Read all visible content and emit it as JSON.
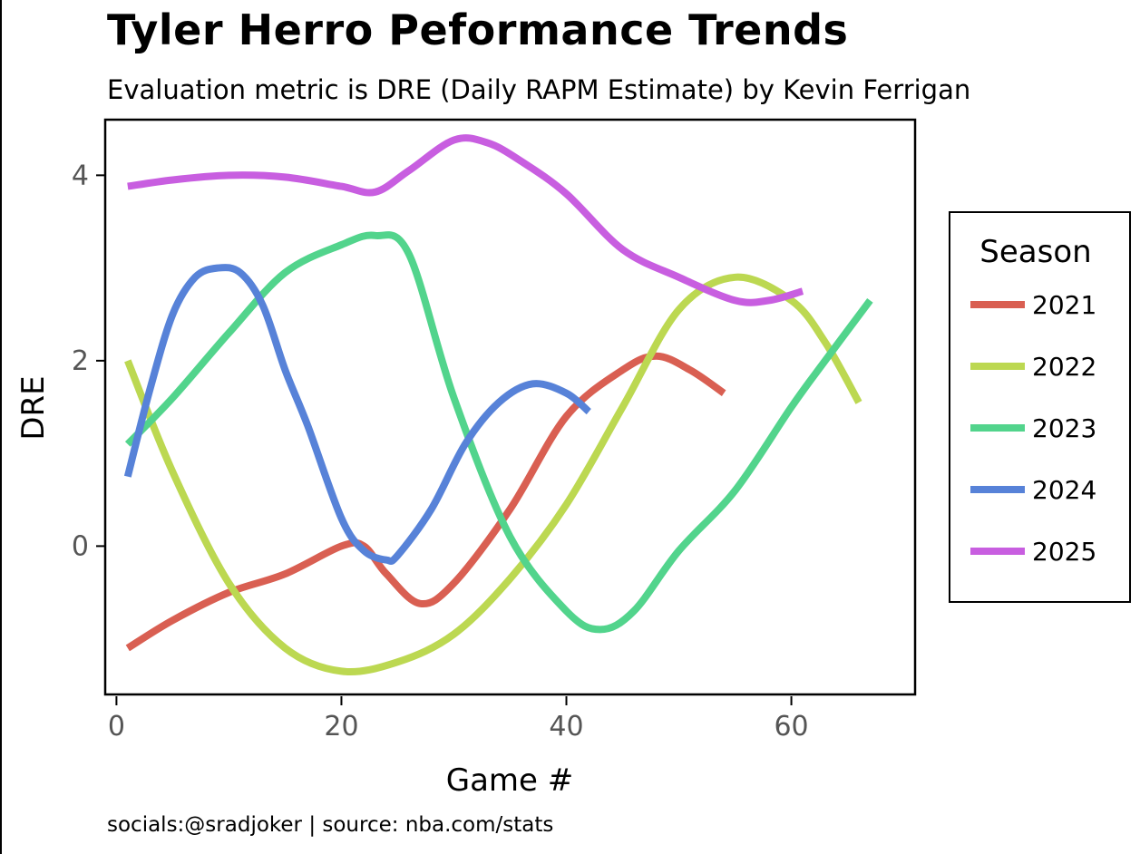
{
  "header": {
    "title": "Tyler Herro Peformance Trends",
    "subtitle": "Evaluation metric is DRE (Daily RAPM Estimate) by Kevin Ferrigan"
  },
  "footer": {
    "caption": "socials:@sradjoker | source: nba.com/stats"
  },
  "chart_data": {
    "type": "line",
    "title": "Tyler Herro Peformance Trends",
    "subtitle": "Evaluation metric is DRE (Daily RAPM Estimate) by Kevin Ferrigan",
    "xlabel": "Game #",
    "ylabel": "DRE",
    "xlim": [
      -1,
      71
    ],
    "ylim": [
      -1.6,
      4.6
    ],
    "xticks": [
      0,
      20,
      40,
      60
    ],
    "yticks": [
      0,
      2,
      4
    ],
    "grid": false,
    "legend": {
      "title": "Season",
      "placement": "right"
    },
    "series": [
      {
        "name": "2021",
        "color": "#d95f52",
        "x": [
          1,
          5,
          10,
          15,
          20,
          22,
          24,
          27,
          30,
          35,
          40,
          45,
          48,
          51,
          54
        ],
        "y": [
          -1.1,
          -0.8,
          -0.5,
          -0.3,
          0.0,
          0.0,
          -0.3,
          -0.62,
          -0.4,
          0.4,
          1.4,
          1.9,
          2.05,
          1.9,
          1.65
        ]
      },
      {
        "name": "2022",
        "color": "#bcd851",
        "x": [
          1,
          5,
          10,
          15,
          20,
          25,
          30,
          35,
          40,
          45,
          50,
          55,
          60,
          63,
          66
        ],
        "y": [
          2.0,
          0.8,
          -0.4,
          -1.1,
          -1.35,
          -1.25,
          -0.95,
          -0.35,
          0.45,
          1.5,
          2.55,
          2.9,
          2.65,
          2.2,
          1.55
        ]
      },
      {
        "name": "2023",
        "color": "#52d48c",
        "x": [
          1,
          5,
          10,
          15,
          20,
          23,
          26,
          30,
          35,
          40,
          43,
          46,
          50,
          55,
          60,
          63,
          67
        ],
        "y": [
          1.1,
          1.6,
          2.3,
          2.95,
          3.25,
          3.35,
          3.15,
          1.6,
          0.1,
          -0.7,
          -0.9,
          -0.7,
          -0.05,
          0.6,
          1.5,
          2.0,
          2.65
        ]
      },
      {
        "name": "2024",
        "color": "#5782d8",
        "x": [
          1,
          3,
          5,
          7,
          9,
          11,
          13,
          15,
          17,
          20,
          22,
          24,
          25,
          28,
          31,
          34,
          37,
          40,
          42
        ],
        "y": [
          0.75,
          1.7,
          2.5,
          2.9,
          3.0,
          2.95,
          2.6,
          1.9,
          1.3,
          0.3,
          -0.05,
          -0.15,
          -0.1,
          0.4,
          1.1,
          1.55,
          1.75,
          1.65,
          1.45
        ]
      },
      {
        "name": "2025",
        "color": "#c85ee0",
        "x": [
          1,
          5,
          10,
          15,
          20,
          23,
          26,
          30,
          33,
          36,
          40,
          45,
          50,
          55,
          58,
          61
        ],
        "y": [
          3.88,
          3.95,
          4.0,
          3.98,
          3.88,
          3.82,
          4.05,
          4.38,
          4.35,
          4.15,
          3.8,
          3.2,
          2.9,
          2.65,
          2.65,
          2.75
        ]
      }
    ]
  }
}
